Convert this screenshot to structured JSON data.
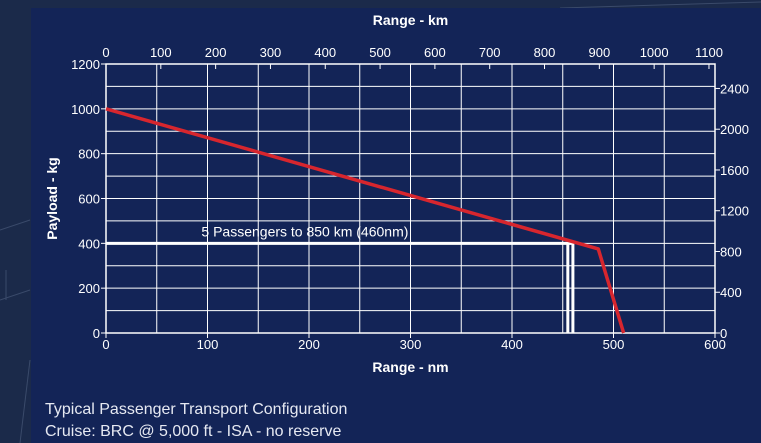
{
  "caption": {
    "line1": "Typical Passenger Transport Configuration",
    "line2": "Cruise: BRC @ 5,000 ft - ISA - no reserve"
  },
  "colors": {
    "background": "#1b2a4a",
    "panel": "#132457",
    "grid": "#ffffff",
    "series": "#d7262e",
    "text": "#ffffff"
  },
  "chart_data": {
    "type": "line",
    "title": "",
    "xlabel": "Range - nm",
    "ylabel": "Payload - kg",
    "x2label": "Range - km",
    "xlim": [
      0,
      600
    ],
    "ylim": [
      0,
      1200
    ],
    "x2lim": [
      0,
      1111
    ],
    "y2lim": [
      0,
      2640
    ],
    "xticks": [
      0,
      100,
      200,
      300,
      400,
      500,
      600
    ],
    "yticks": [
      0,
      200,
      400,
      600,
      800,
      1000,
      1200
    ],
    "x2ticks": [
      0,
      100,
      200,
      300,
      400,
      500,
      600,
      700,
      800,
      900,
      1000,
      1100
    ],
    "y2ticks": [
      0,
      400,
      800,
      1200,
      1600,
      2000,
      2400
    ],
    "grid": true,
    "series": [
      {
        "x": [
          0,
          485,
          510
        ],
        "y": [
          1000,
          375,
          0
        ]
      }
    ],
    "reference": {
      "y": 400,
      "x": [
        455,
        460
      ],
      "label": "5 Passengers to 850 km (460nm)"
    }
  }
}
